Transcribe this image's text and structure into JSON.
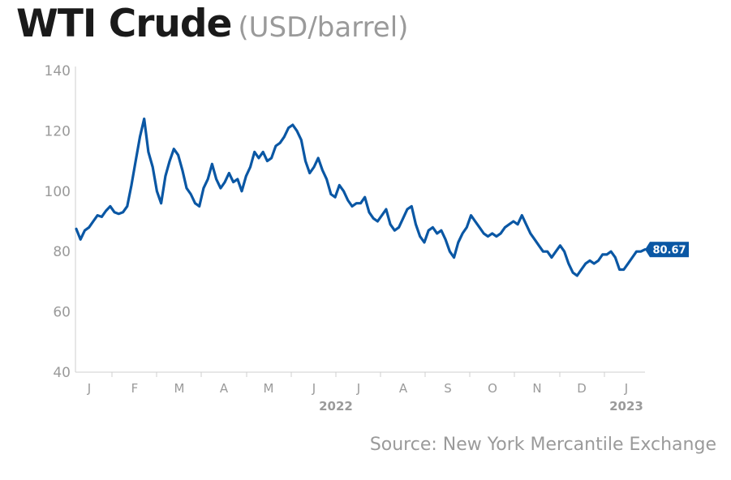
{
  "title": "WTI Crude",
  "unit": "(USD/barrel)",
  "source": "Source: New York Mercantile Exchange",
  "colors": {
    "line": "#0a57a4",
    "axis": "#cfcfcf",
    "text": "#9a9a9a"
  },
  "chart_data": {
    "type": "line",
    "title": "WTI Crude",
    "ylabel": "(USD/barrel)",
    "ylim": [
      40,
      140
    ],
    "yticks": [
      40,
      60,
      80,
      100,
      120,
      140
    ],
    "month_labels": [
      "J",
      "F",
      "M",
      "A",
      "M",
      "J",
      "J",
      "A",
      "S",
      "O",
      "N",
      "D",
      "J"
    ],
    "year_labels": [
      "2022",
      "2023"
    ],
    "last_value_label": "80.67",
    "grid": false,
    "series": [
      {
        "values": [
          87.5,
          84.0,
          87.0,
          88.0,
          90.0,
          92.0,
          91.5,
          93.5,
          95.0,
          93.0,
          92.5,
          93.0,
          95.0,
          102.0,
          110.0,
          118.0,
          124.0,
          113.0,
          108.0,
          100.0,
          96.0,
          105.0,
          110.0,
          114.0,
          112.0,
          107.0,
          101.0,
          99.0,
          96.0,
          95.0,
          101.0,
          104.0,
          109.0,
          104.0,
          101.0,
          103.0,
          106.0,
          103.0,
          104.0,
          100.0,
          105.0,
          108.0,
          113.0,
          111.0,
          113.0,
          110.0,
          111.0,
          115.0,
          116.0,
          118.0,
          121.0,
          122.0,
          120.0,
          117.0,
          110.0,
          106.0,
          108.0,
          111.0,
          107.0,
          104.0,
          99.0,
          98.0,
          102.0,
          100.0,
          97.0,
          95.0,
          96.0,
          96.0,
          98.0,
          93.0,
          91.0,
          90.0,
          92.0,
          94.0,
          89.0,
          87.0,
          88.0,
          91.0,
          94.0,
          95.0,
          89.0,
          85.0,
          83.0,
          87.0,
          88.0,
          86.0,
          87.0,
          84.0,
          80.0,
          78.0,
          83.0,
          86.0,
          88.0,
          92.0,
          90.0,
          88.0,
          86.0,
          85.0,
          86.0,
          85.0,
          86.0,
          88.0,
          89.0,
          90.0,
          89.0,
          92.0,
          89.0,
          86.0,
          84.0,
          82.0,
          80.0,
          80.0,
          78.0,
          80.0,
          82.0,
          80.0,
          76.0,
          73.0,
          72.0,
          74.0,
          76.0,
          77.0,
          76.0,
          77.0,
          79.0,
          79.0,
          80.0,
          78.0,
          74.0,
          74.0,
          76.0,
          78.0,
          80.0,
          80.0,
          80.67
        ]
      }
    ]
  }
}
